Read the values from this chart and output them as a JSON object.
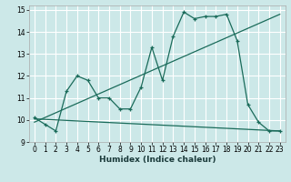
{
  "xlabel": "Humidex (Indice chaleur)",
  "bg_color": "#cce8e8",
  "grid_color": "#bbdddd",
  "line_color": "#1a6b5a",
  "xlim": [
    -0.5,
    23.5
  ],
  "ylim": [
    9,
    15.2
  ],
  "xticks": [
    0,
    1,
    2,
    3,
    4,
    5,
    6,
    7,
    8,
    9,
    10,
    11,
    12,
    13,
    14,
    15,
    16,
    17,
    18,
    19,
    20,
    21,
    22,
    23
  ],
  "yticks": [
    9,
    10,
    11,
    12,
    13,
    14,
    15
  ],
  "line1_x": [
    0,
    1,
    2,
    3,
    4,
    5,
    6,
    7,
    8,
    9,
    10,
    11,
    12,
    13,
    14,
    15,
    16,
    17,
    18,
    19,
    20,
    21,
    22,
    23
  ],
  "line1_y": [
    10.1,
    9.8,
    9.5,
    11.3,
    12.0,
    11.8,
    11.0,
    11.0,
    10.5,
    10.5,
    11.5,
    13.3,
    11.8,
    13.8,
    14.9,
    14.6,
    14.7,
    14.7,
    14.8,
    13.6,
    10.7,
    9.9,
    9.5,
    9.5
  ],
  "line2_x": [
    0,
    23
  ],
  "line2_y": [
    10.05,
    9.5
  ],
  "line3_x": [
    0,
    23
  ],
  "line3_y": [
    9.9,
    14.8
  ]
}
